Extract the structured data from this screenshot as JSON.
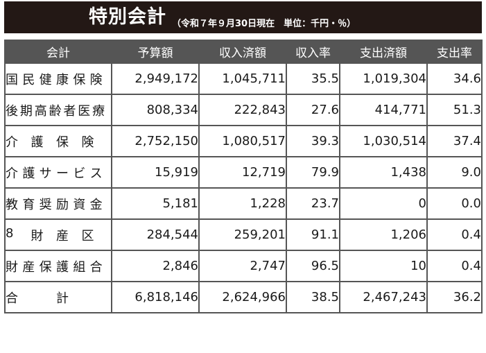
{
  "title": "特別会計",
  "subtitle": "（令和７年９月30日現在　単位：千円・％）",
  "columns": [
    "会計",
    "予算額",
    "収入済額",
    "収入率",
    "支出済額",
    "支出率"
  ],
  "rows": [
    {
      "name": "国民健康保険",
      "budget": "2,949,172",
      "received": "1,045,711",
      "receipt_rate": "35.5",
      "spent": "1,019,304",
      "spend_rate": "34.6"
    },
    {
      "name": "後期高齢者医療",
      "budget": "808,334",
      "received": "222,843",
      "receipt_rate": "27.6",
      "spent": "414,771",
      "spend_rate": "51.3"
    },
    {
      "name": "介護保険",
      "budget": "2,752,150",
      "received": "1,080,517",
      "receipt_rate": "39.3",
      "spent": "1,030,514",
      "spend_rate": "37.4"
    },
    {
      "name": "介護サービス",
      "budget": "15,919",
      "received": "12,719",
      "receipt_rate": "79.9",
      "spent": "1,438",
      "spend_rate": "9.0"
    },
    {
      "name": "教育奨励資金",
      "budget": "5,181",
      "received": "1,228",
      "receipt_rate": "23.7",
      "spent": "0",
      "spend_rate": "0.0"
    },
    {
      "name": "8財産区",
      "budget": "284,544",
      "received": "259,201",
      "receipt_rate": "91.1",
      "spent": "1,206",
      "spend_rate": "0.4"
    },
    {
      "name": "財産保護組合",
      "budget": "2,846",
      "received": "2,747",
      "receipt_rate": "96.5",
      "spent": "10",
      "spend_rate": "0.4"
    },
    {
      "name": "合計",
      "budget": "6,818,146",
      "received": "2,624,966",
      "receipt_rate": "38.5",
      "spent": "2,467,243",
      "spend_rate": "36.2"
    }
  ]
}
